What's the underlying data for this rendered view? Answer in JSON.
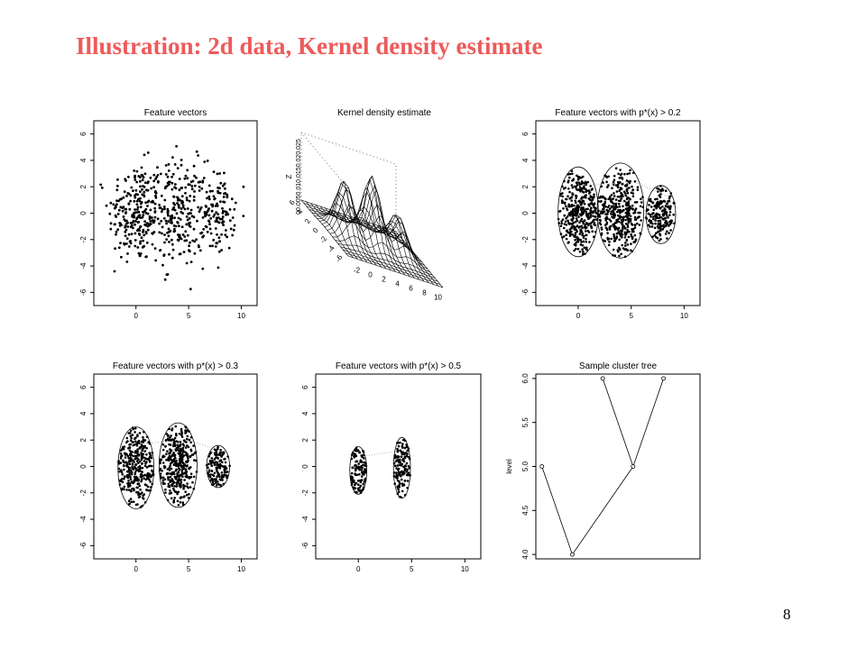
{
  "slide": {
    "title": "Illustration:  2d data, Kernel density estimate",
    "page_number": "8"
  },
  "chart_data": [
    {
      "type": "scatter",
      "title": "Feature vectors",
      "xticks": [
        "0",
        "5",
        "10"
      ],
      "yticks": [
        "-6",
        "-4",
        "-2",
        "0",
        "2",
        "4",
        "6"
      ],
      "xlim": [
        -4,
        11.5
      ],
      "ylim": [
        -7,
        7
      ],
      "clusters": [
        {
          "center": [
            0,
            0
          ],
          "spread": [
            1.3,
            1.9
          ],
          "count": 240
        },
        {
          "center": [
            4,
            0
          ],
          "spread": [
            1.3,
            2.0
          ],
          "count": 240
        },
        {
          "center": [
            7.8,
            0
          ],
          "spread": [
            0.8,
            1.5
          ],
          "count": 120
        }
      ]
    },
    {
      "type": "surface",
      "title": "Kernel density estimate",
      "zlabel": "Z",
      "zticks": [
        "0",
        "0.0050.010.0150.020.025"
      ],
      "xticks": [
        "-2",
        "0",
        "2",
        "4",
        "6",
        "8",
        "10"
      ],
      "yticks": [
        "-6",
        "-4",
        "-2",
        "0",
        "2",
        "4",
        "6"
      ],
      "peaks": [
        [
          0,
          0,
          0.02
        ],
        [
          4,
          0,
          0.025
        ],
        [
          7.8,
          0,
          0.014
        ]
      ]
    },
    {
      "type": "scatter",
      "title": "Feature vectors with p*(x) > 0.2",
      "xticks": [
        "0",
        "5",
        "10"
      ],
      "yticks": [
        "-6",
        "-4",
        "-2",
        "0",
        "2",
        "4",
        "6"
      ],
      "xlim": [
        -4,
        11.5
      ],
      "ylim": [
        -7,
        7
      ],
      "threshold": 0.2,
      "regions": [
        {
          "center": [
            0,
            0.1
          ],
          "radii": [
            1.9,
            3.4
          ]
        },
        {
          "center": [
            4,
            0.2
          ],
          "radii": [
            2.2,
            3.6
          ]
        },
        {
          "center": [
            7.8,
            -0.1
          ],
          "radii": [
            1.4,
            2.2
          ]
        }
      ]
    },
    {
      "type": "scatter",
      "title": "Feature vectors with p*(x) > 0.3",
      "xticks": [
        "0",
        "5",
        "10"
      ],
      "yticks": [
        "-6",
        "-4",
        "-2",
        "0",
        "2",
        "4",
        "6"
      ],
      "xlim": [
        -4,
        11.5
      ],
      "ylim": [
        -7,
        7
      ],
      "threshold": 0.3,
      "regions": [
        {
          "center": [
            0,
            -0.1
          ],
          "radii": [
            1.7,
            3.1
          ]
        },
        {
          "center": [
            4,
            0.1
          ],
          "radii": [
            1.8,
            3.2
          ]
        },
        {
          "center": [
            7.8,
            0
          ],
          "radii": [
            1.1,
            1.6
          ]
        }
      ]
    },
    {
      "type": "scatter",
      "title": "Feature vectors with p*(x) > 0.5",
      "xticks": [
        "0",
        "5",
        "10"
      ],
      "yticks": [
        "-6",
        "-4",
        "-2",
        "0",
        "2",
        "4",
        "6"
      ],
      "xlim": [
        -4,
        11.5
      ],
      "ylim": [
        -7,
        7
      ],
      "threshold": 0.5,
      "regions": [
        {
          "center": [
            0,
            -0.3
          ],
          "radii": [
            0.8,
            1.8
          ]
        },
        {
          "center": [
            4.1,
            -0.1
          ],
          "radii": [
            0.8,
            2.3
          ]
        }
      ]
    },
    {
      "type": "line",
      "title": "Sample cluster tree",
      "ylabel": "level",
      "yticks": [
        "4.0",
        "4.5",
        "5.0",
        "5.5",
        "6.0"
      ],
      "ylim": [
        3.95,
        6.05
      ],
      "xlim": [
        0.8,
        6.2
      ],
      "nodes": [
        {
          "x": 1,
          "y": 5.0
        },
        {
          "x": 2,
          "y": 4.0
        },
        {
          "x": 3,
          "y": 6.0
        },
        {
          "x": 4,
          "y": 5.0
        },
        {
          "x": 5,
          "y": 6.0
        }
      ],
      "edges": [
        [
          0,
          1
        ],
        [
          1,
          3
        ],
        [
          2,
          3
        ],
        [
          3,
          4
        ]
      ]
    }
  ]
}
